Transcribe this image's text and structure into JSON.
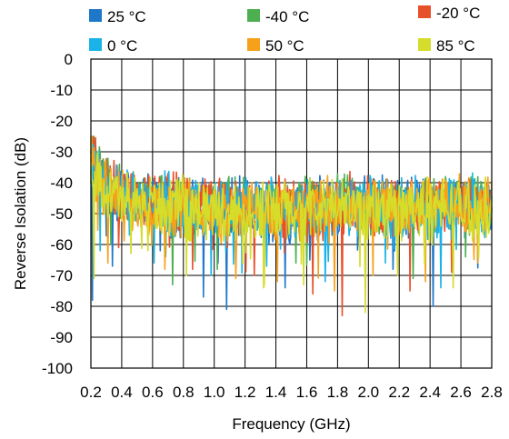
{
  "chart_data": {
    "type": "line",
    "title": "",
    "xlabel": "Frequency (GHz)",
    "ylabel": "Reverse Isolation (dB)",
    "xlim": [
      0.2,
      2.8
    ],
    "ylim": [
      -100,
      0
    ],
    "x_ticks": [
      "0.2",
      "0.4",
      "0.6",
      "0.8",
      "1.0",
      "1.2",
      "1.4",
      "1.6",
      "1.8",
      "2.0",
      "2.2",
      "2.4",
      "2.6",
      "2.8"
    ],
    "y_ticks": [
      "0",
      "-10",
      "-20",
      "-30",
      "-40",
      "-50",
      "-60",
      "-70",
      "-80",
      "-90",
      "-100"
    ],
    "grid": true,
    "legend_position": "top",
    "series": [
      {
        "name": "25 °C",
        "color": "#1f77c9",
        "x": [
          0.2,
          0.3,
          0.4,
          0.6,
          0.8,
          1.0,
          1.2,
          1.4,
          1.6,
          1.8,
          2.0,
          2.2,
          2.4,
          2.6,
          2.8
        ],
        "values": [
          -32,
          -42,
          -45,
          -47,
          -48,
          -48,
          -48,
          -49,
          -48,
          -48,
          -48,
          -47,
          -48,
          -47,
          -47
        ],
        "min_dips": [
          [
            0.21,
            -78
          ],
          [
            0.34,
            -67
          ],
          [
            0.65,
            -62
          ],
          [
            0.93,
            -77
          ],
          [
            1.08,
            -81
          ],
          [
            1.46,
            -74
          ],
          [
            1.62,
            -65
          ],
          [
            2.16,
            -68
          ],
          [
            2.42,
            -80
          ]
        ]
      },
      {
        "name": "-40 °C",
        "color": "#4caf50",
        "x": [
          0.2,
          0.3,
          0.4,
          0.6,
          0.8,
          1.0,
          1.2,
          1.4,
          1.6,
          1.8,
          2.0,
          2.2,
          2.4,
          2.6,
          2.8
        ],
        "values": [
          -31,
          -41,
          -44,
          -46,
          -47,
          -47,
          -48,
          -48,
          -48,
          -47,
          -48,
          -47,
          -47,
          -47,
          -47
        ],
        "min_dips": [
          [
            0.33,
            -60
          ],
          [
            0.73,
            -73
          ],
          [
            1.02,
            -68
          ],
          [
            1.53,
            -66
          ],
          [
            1.98,
            -72
          ],
          [
            2.29,
            -71
          ],
          [
            2.63,
            -64
          ]
        ]
      },
      {
        "name": "-20 °C",
        "color": "#e8502a",
        "x": [
          0.2,
          0.3,
          0.4,
          0.6,
          0.8,
          1.0,
          1.2,
          1.4,
          1.6,
          1.8,
          2.0,
          2.2,
          2.4,
          2.6,
          2.8
        ],
        "values": [
          -30,
          -40,
          -44,
          -46,
          -47,
          -47,
          -48,
          -48,
          -48,
          -47,
          -47,
          -47,
          -47,
          -46,
          -47
        ],
        "min_dips": [
          [
            0.38,
            -61
          ],
          [
            0.86,
            -68
          ],
          [
            1.26,
            -70
          ],
          [
            1.64,
            -76
          ],
          [
            1.83,
            -83
          ],
          [
            2.27,
            -75
          ],
          [
            2.54,
            -69
          ]
        ]
      },
      {
        "name": "0 °C",
        "color": "#1ab3e8",
        "x": [
          0.2,
          0.3,
          0.4,
          0.6,
          0.8,
          1.0,
          1.2,
          1.4,
          1.6,
          1.8,
          2.0,
          2.2,
          2.4,
          2.6,
          2.8
        ],
        "values": [
          -31,
          -41,
          -45,
          -46,
          -47,
          -48,
          -48,
          -48,
          -48,
          -48,
          -48,
          -47,
          -48,
          -47,
          -47
        ],
        "min_dips": [
          [
            0.26,
            -62
          ],
          [
            0.61,
            -66
          ],
          [
            0.98,
            -70
          ],
          [
            1.34,
            -67
          ],
          [
            1.72,
            -72
          ],
          [
            2.11,
            -66
          ],
          [
            2.47,
            -74
          ]
        ]
      },
      {
        "name": "50 °C",
        "color": "#f7a11a",
        "x": [
          0.2,
          0.3,
          0.4,
          0.6,
          0.8,
          1.0,
          1.2,
          1.4,
          1.6,
          1.8,
          2.0,
          2.2,
          2.4,
          2.6,
          2.8
        ],
        "values": [
          -32,
          -43,
          -45,
          -47,
          -48,
          -48,
          -49,
          -49,
          -48,
          -48,
          -48,
          -48,
          -48,
          -47,
          -48
        ],
        "min_dips": [
          [
            0.31,
            -66
          ],
          [
            0.68,
            -68
          ],
          [
            1.14,
            -71
          ],
          [
            1.41,
            -72
          ],
          [
            1.78,
            -75
          ],
          [
            2.03,
            -70
          ],
          [
            2.37,
            -72
          ],
          [
            2.71,
            -66
          ]
        ]
      },
      {
        "name": "85 °C",
        "color": "#d6dc2a",
        "x": [
          0.2,
          0.3,
          0.4,
          0.6,
          0.8,
          1.0,
          1.2,
          1.4,
          1.6,
          1.8,
          2.0,
          2.2,
          2.4,
          2.6,
          2.8
        ],
        "values": [
          -33,
          -43,
          -46,
          -47,
          -48,
          -49,
          -49,
          -49,
          -49,
          -48,
          -48,
          -48,
          -48,
          -48,
          -48
        ],
        "min_dips": [
          [
            0.22,
            -71
          ],
          [
            0.57,
            -62
          ],
          [
            0.82,
            -70
          ],
          [
            1.32,
            -74
          ],
          [
            1.58,
            -73
          ],
          [
            1.98,
            -82
          ],
          [
            2.19,
            -70
          ],
          [
            2.55,
            -74
          ]
        ]
      }
    ]
  }
}
